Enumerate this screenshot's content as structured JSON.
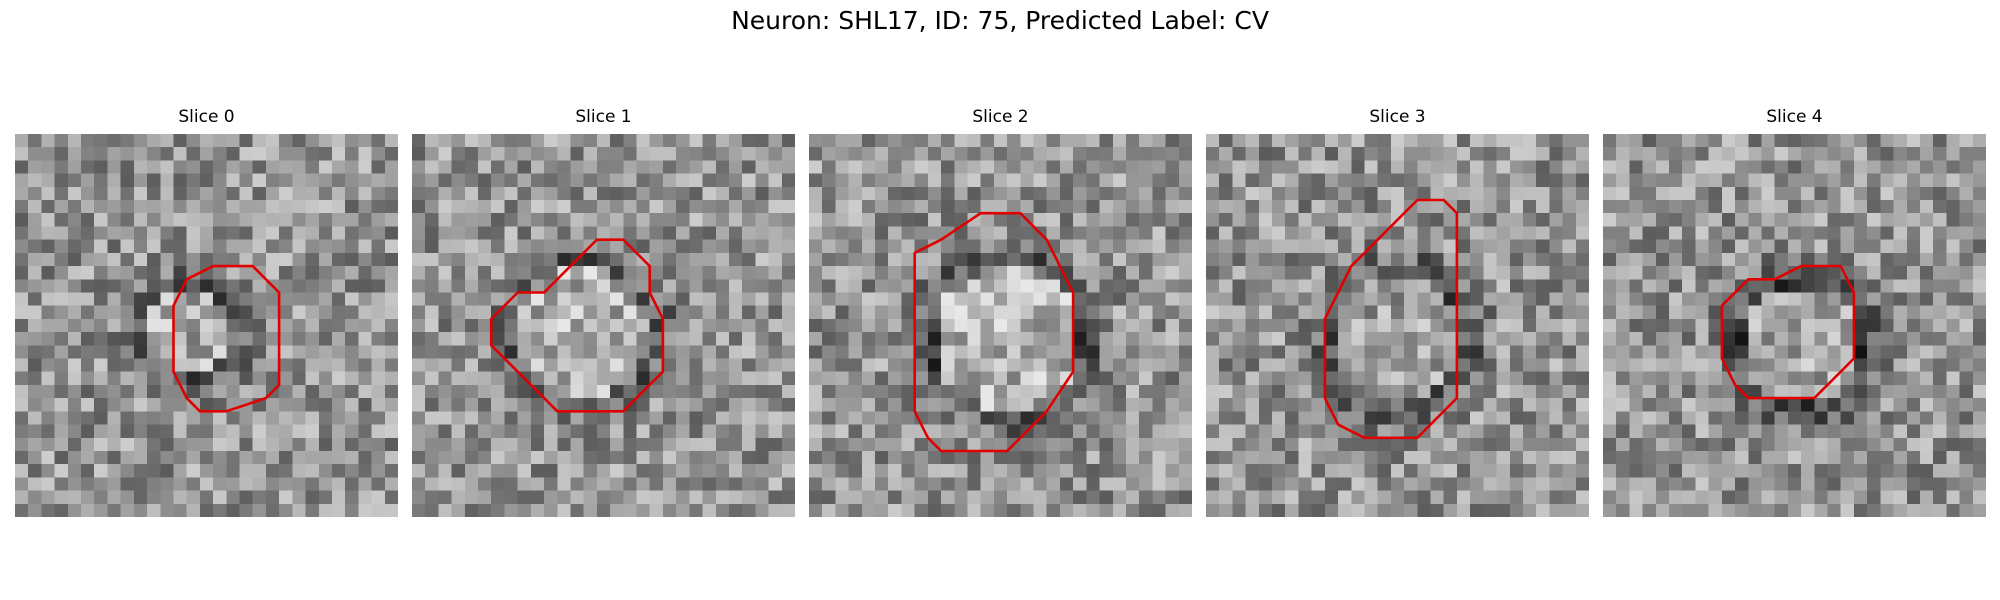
{
  "title": "Neuron: SHL17, ID: 75, Predicted Label: CV",
  "outline_color": "#e00000",
  "panels": [
    {
      "title": "Slice 0",
      "roi": [
        [
          15,
          10
        ],
        [
          18,
          10
        ],
        [
          20,
          12
        ],
        [
          20,
          19
        ],
        [
          19,
          20
        ],
        [
          16,
          21
        ],
        [
          14,
          21
        ],
        [
          13,
          20
        ],
        [
          12,
          18
        ],
        [
          12,
          16
        ],
        [
          12,
          13
        ],
        [
          13,
          11
        ]
      ],
      "spot": [
        12.5,
        14.5,
        3.2,
        0.55,
        0.18
      ]
    },
    {
      "title": "Slice 1",
      "roi": [
        [
          14,
          8
        ],
        [
          16,
          8
        ],
        [
          18,
          10
        ],
        [
          18,
          12
        ],
        [
          19,
          14
        ],
        [
          19,
          18
        ],
        [
          17,
          20
        ],
        [
          16,
          21
        ],
        [
          13,
          21
        ],
        [
          11,
          21
        ],
        [
          10,
          20
        ],
        [
          8,
          18
        ],
        [
          6,
          16
        ],
        [
          6,
          14
        ],
        [
          8,
          12
        ],
        [
          10,
          12
        ],
        [
          12,
          10
        ]
      ],
      "spot": [
        12.5,
        14.5,
        5.0,
        0.6,
        0.18
      ]
    },
    {
      "title": "Slice 2",
      "roi": [
        [
          13,
          6
        ],
        [
          16,
          6
        ],
        [
          18,
          8
        ],
        [
          19,
          10
        ],
        [
          20,
          12
        ],
        [
          20,
          18
        ],
        [
          18,
          21
        ],
        [
          17,
          22
        ],
        [
          15,
          24
        ],
        [
          11,
          24
        ],
        [
          10,
          24
        ],
        [
          9,
          23
        ],
        [
          8,
          21
        ],
        [
          8,
          9
        ],
        [
          10,
          8
        ]
      ],
      "spot": [
        14.5,
        15.0,
        5.5,
        0.6,
        0.22
      ]
    },
    {
      "title": "Slice 3",
      "roi": [
        [
          16,
          5
        ],
        [
          18,
          5
        ],
        [
          19,
          6
        ],
        [
          19,
          20
        ],
        [
          17,
          22
        ],
        [
          16,
          23
        ],
        [
          12,
          23
        ],
        [
          10,
          22
        ],
        [
          9,
          20
        ],
        [
          9,
          14
        ],
        [
          10,
          12
        ],
        [
          11,
          10
        ],
        [
          12,
          9
        ],
        [
          14,
          7
        ]
      ],
      "spot": [
        14.0,
        15.0,
        5.0,
        0.5,
        0.18
      ]
    },
    {
      "title": "Slice 4",
      "roi": [
        [
          15,
          10
        ],
        [
          18,
          10
        ],
        [
          19,
          12
        ],
        [
          19,
          17
        ],
        [
          17,
          19
        ],
        [
          16,
          20
        ],
        [
          13,
          20
        ],
        [
          11,
          20
        ],
        [
          10,
          19
        ],
        [
          9,
          17
        ],
        [
          9,
          13
        ],
        [
          10,
          12
        ],
        [
          11,
          11
        ],
        [
          13,
          11
        ]
      ],
      "spot": [
        14.5,
        15.5,
        4.5,
        0.55,
        0.22
      ]
    }
  ]
}
